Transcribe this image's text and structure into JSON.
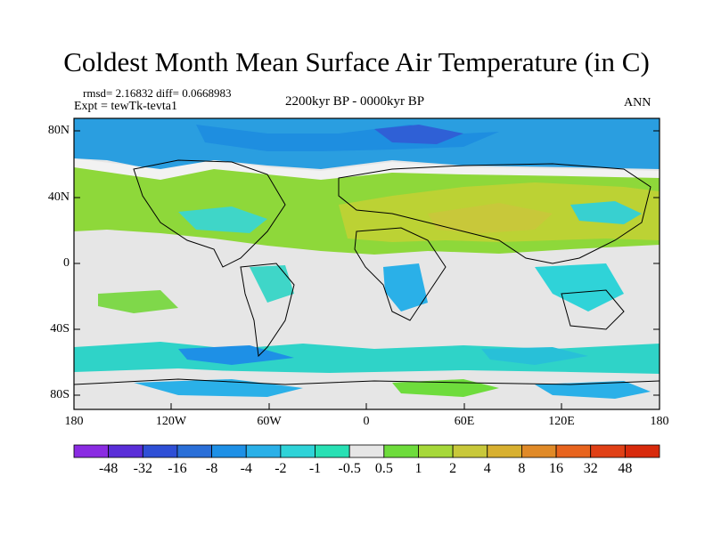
{
  "title": "Coldest Month Mean Surface Air Temperature (in C)",
  "stats": "rmsd= 2.16832  diff= 0.0668983",
  "experiment": "Expt = tewTk-tevta1",
  "period": "2200kyr BP - 0000kyr BP",
  "season": "ANN",
  "lat_labels": [
    "80N",
    "40N",
    "0",
    "40S",
    "80S"
  ],
  "lon_labels": [
    "180",
    "120W",
    "60W",
    "0",
    "60E",
    "120E",
    "180"
  ],
  "colorbar": {
    "labels": [
      "-48",
      "-32",
      "-16",
      "-8",
      "-4",
      "-2",
      "-1",
      "-0.5",
      "0.5",
      "1",
      "2",
      "4",
      "8",
      "16",
      "32",
      "48"
    ],
    "colors": [
      "#8a2be2",
      "#5a2ed8",
      "#2f4fd6",
      "#2a6fd8",
      "#1e90e6",
      "#2ab0e8",
      "#2fd3d8",
      "#28e0b4",
      "#e6e6e6",
      "#6edc3c",
      "#a6d83a",
      "#c8c83a",
      "#d8b030",
      "#e08a28",
      "#e8641e",
      "#e04016",
      "#d82a0c"
    ]
  }
}
